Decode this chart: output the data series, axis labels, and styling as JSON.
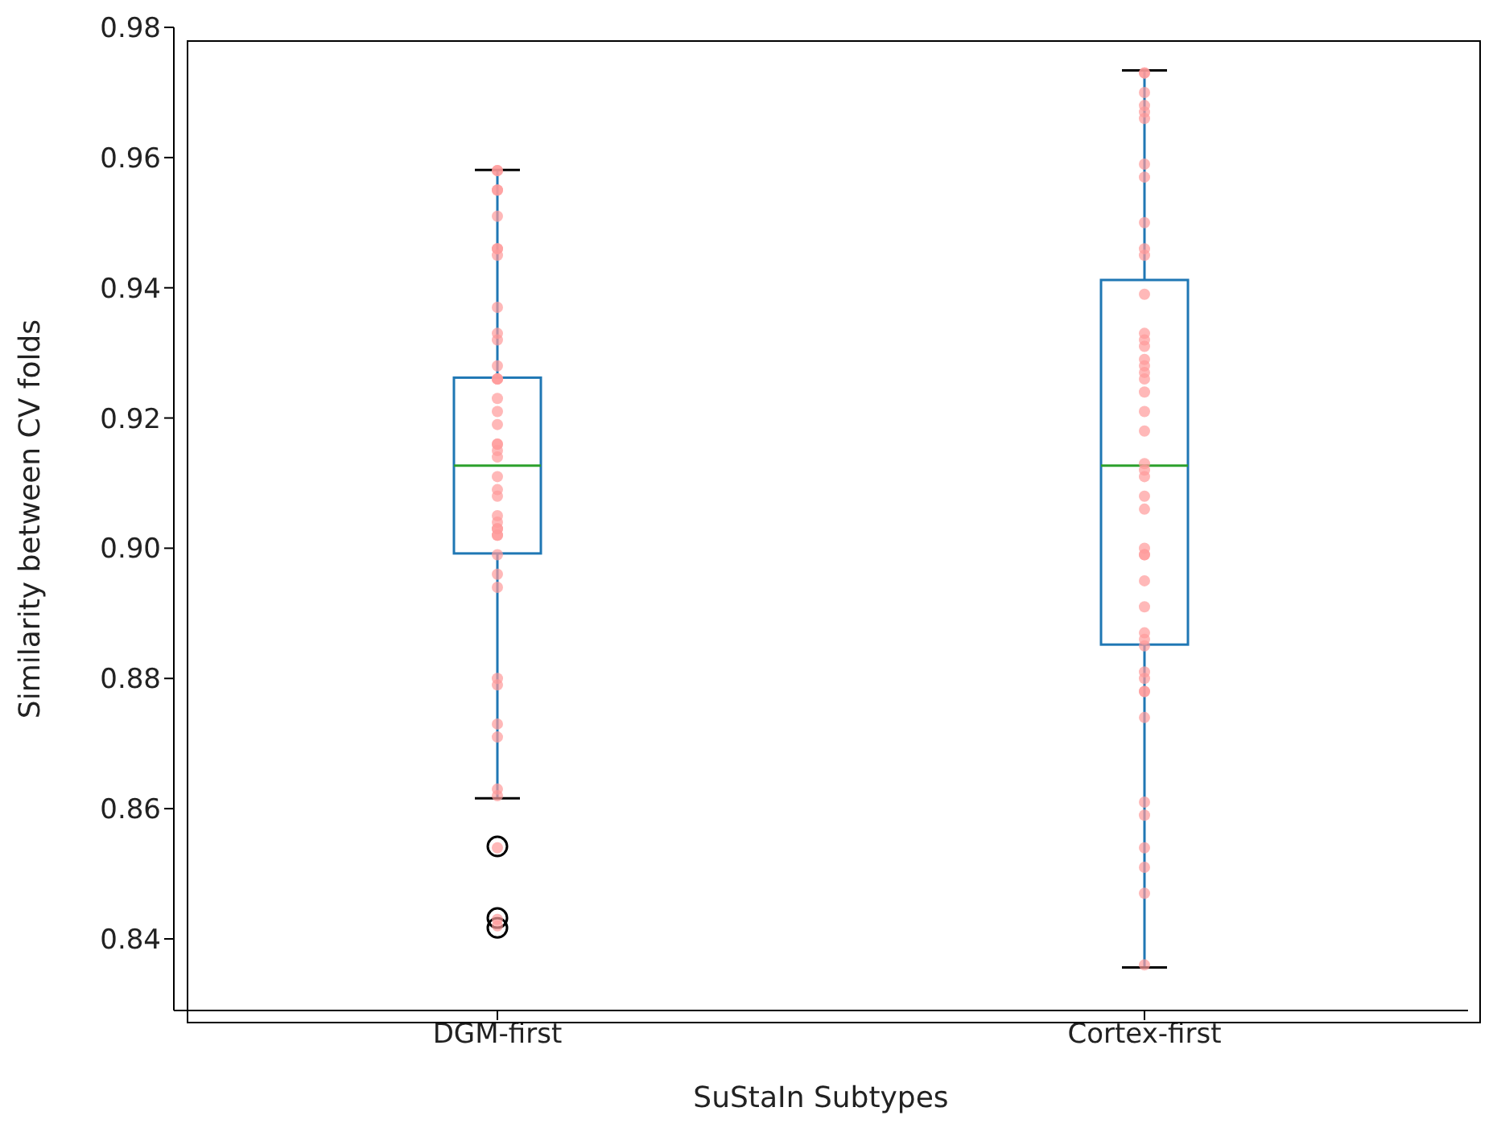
{
  "chart_data": {
    "type": "box",
    "xlabel": "SuStaIn Subtypes",
    "ylabel": "Similarity between CV folds",
    "categories": [
      "DGM-first",
      "Cortex-first"
    ],
    "ylim": [
      0.829,
      0.98
    ],
    "yticks": [
      0.84,
      0.86,
      0.88,
      {
        "value": 0.9,
        "label": "0.90"
      },
      0.92,
      0.94,
      0.96,
      0.98
    ],
    "series": [
      {
        "color": "#1f77b4",
        "boxes": [
          {
            "low": 0.8616,
            "q1": 0.8992,
            "median": 0.9127,
            "q3": 0.9262,
            "high": 0.9581,
            "outliers": [
              0.8542,
              0.8432,
              0.8417
            ]
          },
          {
            "low": 0.8356,
            "q1": 0.8852,
            "median": 0.9127,
            "q3": 0.9412,
            "high": 0.9734
          }
        ]
      },
      {
        "type": "scatter",
        "color": "#ff9a9a",
        "x": [
          "DGM-first",
          "DGM-first",
          "DGM-first",
          "DGM-first",
          "DGM-first",
          "DGM-first",
          "DGM-first",
          "DGM-first",
          "DGM-first",
          "DGM-first",
          "DGM-first",
          "DGM-first",
          "DGM-first",
          "DGM-first",
          "DGM-first",
          "DGM-first",
          "DGM-first",
          "DGM-first",
          "DGM-first",
          "DGM-first",
          "DGM-first",
          "DGM-first",
          "DGM-first",
          "DGM-first",
          "DGM-first",
          "DGM-first",
          "DGM-first",
          "DGM-first",
          "DGM-first",
          "DGM-first",
          "DGM-first",
          "DGM-first",
          "DGM-first",
          "DGM-first",
          "DGM-first",
          "DGM-first",
          "DGM-first",
          "DGM-first",
          "DGM-first",
          "DGM-first",
          "DGM-first",
          "DGM-first",
          "DGM-first",
          "Cortex-first",
          "Cortex-first",
          "Cortex-first",
          "Cortex-first",
          "Cortex-first",
          "Cortex-first",
          "Cortex-first",
          "Cortex-first",
          "Cortex-first",
          "Cortex-first",
          "Cortex-first",
          "Cortex-first",
          "Cortex-first",
          "Cortex-first",
          "Cortex-first",
          "Cortex-first",
          "Cortex-first",
          "Cortex-first",
          "Cortex-first",
          "Cortex-first",
          "Cortex-first",
          "Cortex-first",
          "Cortex-first",
          "Cortex-first",
          "Cortex-first",
          "Cortex-first",
          "Cortex-first",
          "Cortex-first",
          "Cortex-first",
          "Cortex-first",
          "Cortex-first",
          "Cortex-first",
          "Cortex-first",
          "Cortex-first",
          "Cortex-first",
          "Cortex-first",
          "Cortex-first",
          "Cortex-first",
          "Cortex-first",
          "Cortex-first",
          "Cortex-first",
          "Cortex-first",
          "Cortex-first",
          "Cortex-first",
          "Cortex-first",
          "Cortex-first"
        ],
        "values": [
          0.958,
          0.958,
          0.955,
          0.955,
          0.951,
          0.946,
          0.946,
          0.945,
          0.937,
          0.932,
          0.933,
          0.928,
          0.926,
          0.926,
          0.926,
          0.923,
          0.921,
          0.919,
          0.916,
          0.916,
          0.915,
          0.914,
          0.911,
          0.909,
          0.908,
          0.905,
          0.904,
          0.903,
          0.903,
          0.902,
          0.902,
          0.899,
          0.896,
          0.894,
          0.88,
          0.879,
          0.873,
          0.871,
          0.863,
          0.862,
          0.854,
          0.843,
          0.842,
          0.973,
          0.973,
          0.97,
          0.968,
          0.967,
          0.966,
          0.959,
          0.957,
          0.95,
          0.946,
          0.945,
          0.939,
          0.933,
          0.932,
          0.931,
          0.929,
          0.928,
          0.927,
          0.926,
          0.924,
          0.921,
          0.918,
          0.913,
          0.912,
          0.911,
          0.908,
          0.906,
          0.9,
          0.899,
          0.899,
          0.895,
          0.891,
          0.887,
          0.886,
          0.885,
          0.881,
          0.88,
          0.878,
          0.878,
          0.874,
          0.861,
          0.859,
          0.854,
          0.851,
          0.847,
          0.836
        ]
      }
    ]
  }
}
